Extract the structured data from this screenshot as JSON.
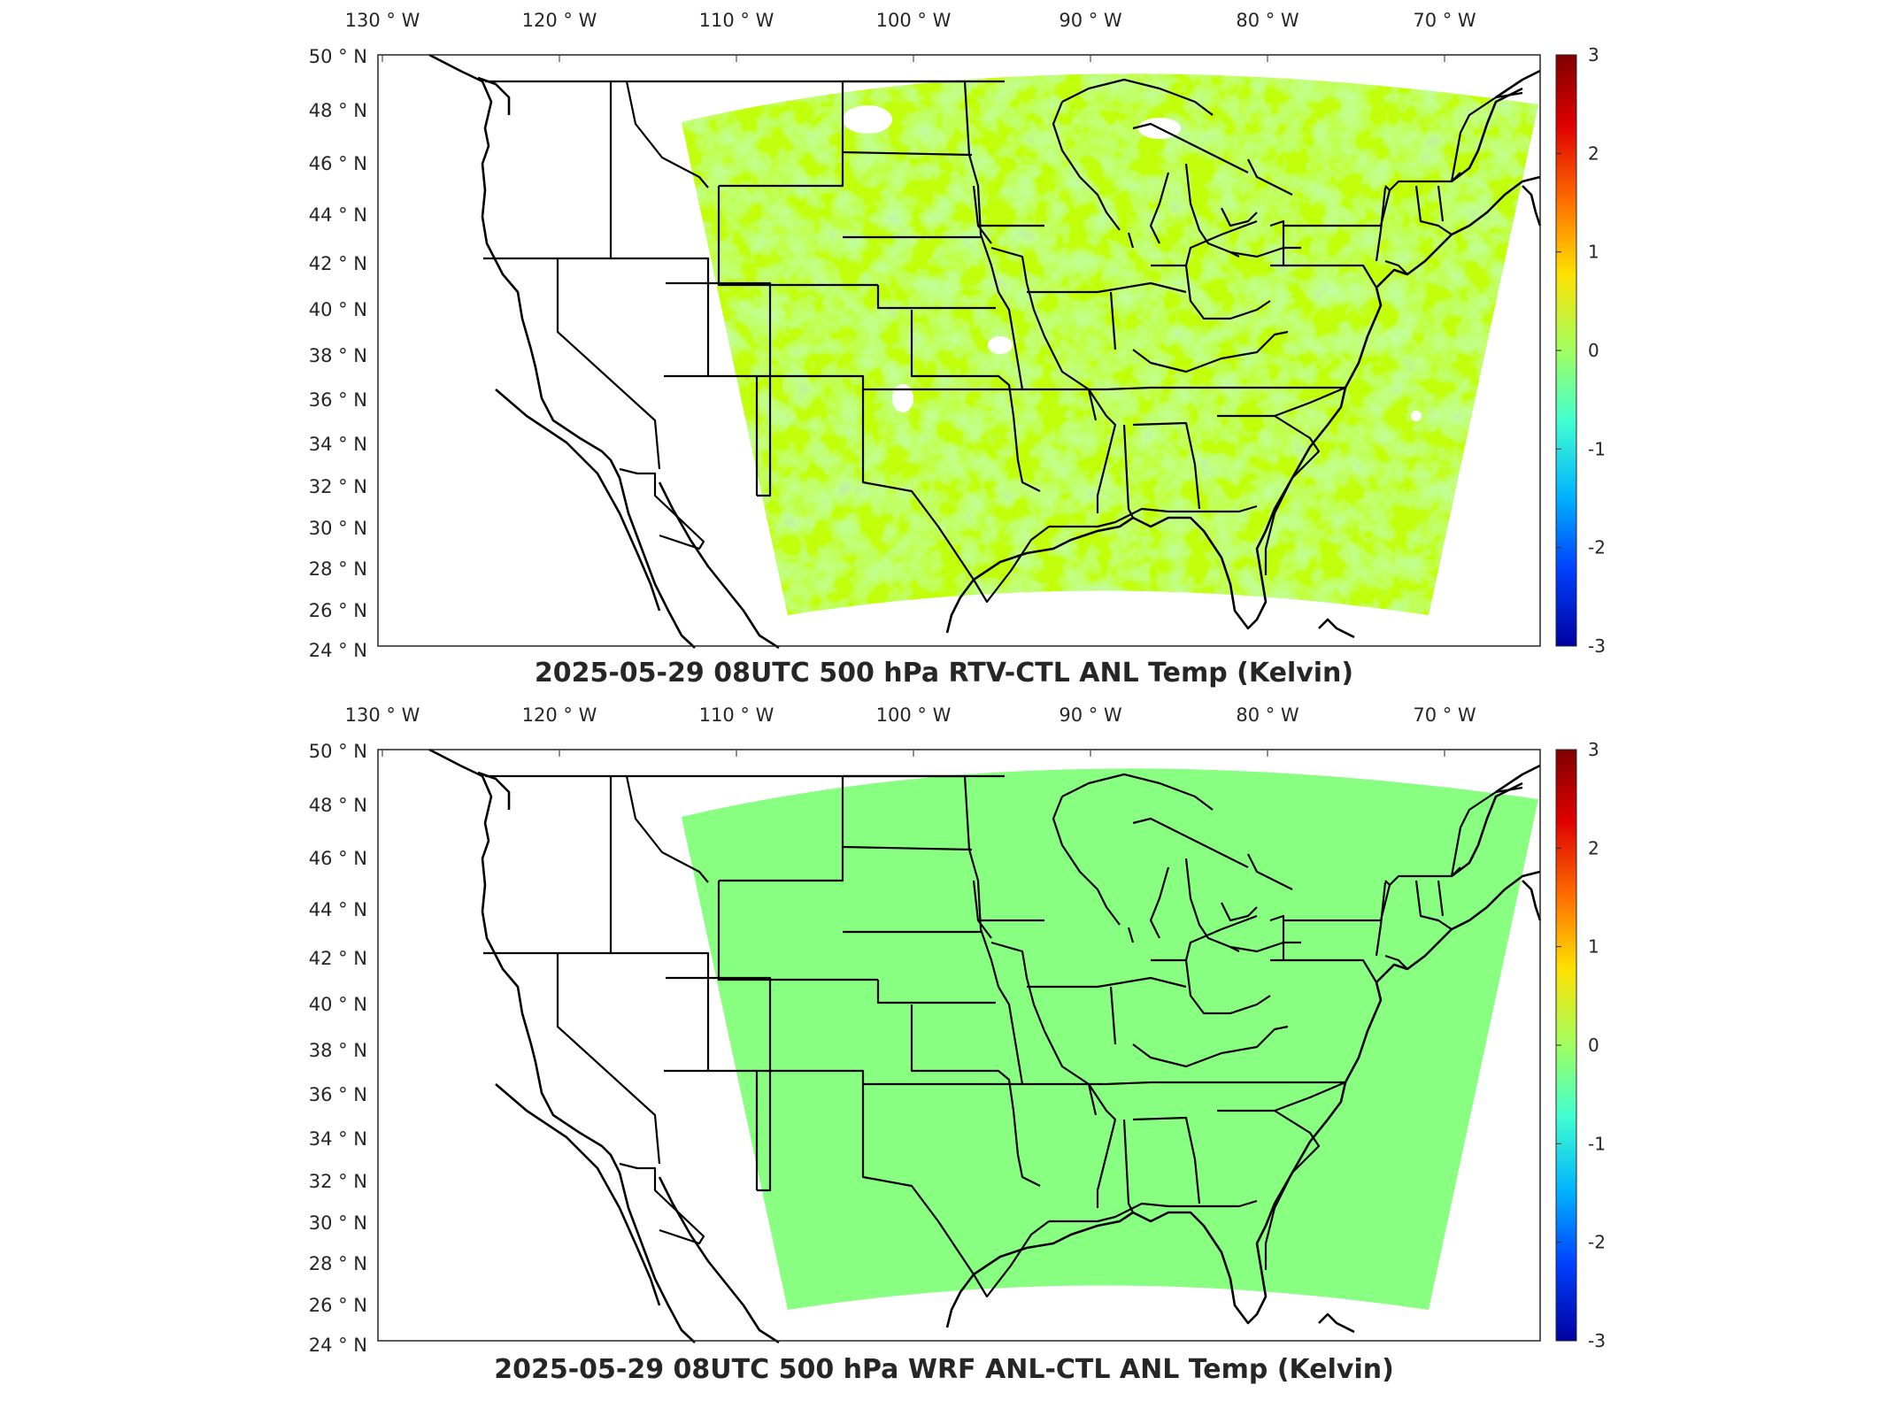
{
  "colorbar": {
    "ticks": [
      "3",
      "2",
      "1",
      "0",
      "-1",
      "-2",
      "-3"
    ],
    "colors": [
      "#800000",
      "#e00000",
      "#ff7000",
      "#ffe000",
      "#a0ff60",
      "#40ffd0",
      "#00b0ff",
      "#0040ff",
      "#0000a0"
    ]
  },
  "axes": {
    "lon_labels": [
      "130",
      "120",
      "110",
      "100",
      "90",
      "80",
      "70"
    ],
    "lon_hemisphere": "W",
    "lat_labels": [
      "50",
      "48",
      "46",
      "44",
      "42",
      "40",
      "38",
      "36",
      "34",
      "32",
      "30",
      "28",
      "26",
      "24"
    ],
    "lat_hemisphere": "N",
    "degree_symbol": "°"
  },
  "panels": [
    {
      "title": "2025-05-29 08UTC 500 hPa RTV-CTL ANL Temp (Kelvin)",
      "field_colors": [
        "#b6ff4c",
        "#e2ff2a",
        "#6dffa0",
        "#9dff6e",
        "#d0ff40"
      ]
    },
    {
      "title": "2025-05-29 08UTC 500 hPa WRF ANL-CTL ANL Temp (Kelvin)",
      "field_colors": [
        "#88ff80"
      ]
    }
  ]
}
